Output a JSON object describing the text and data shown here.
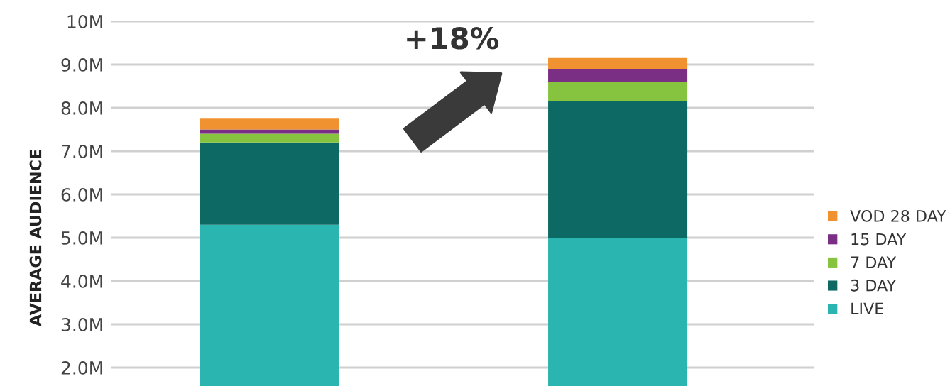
{
  "chart_data": {
    "type": "bar",
    "stacked": true,
    "ylabel": "AVERAGE AUDIENCE",
    "categories": [
      null,
      null
    ],
    "series": [
      {
        "name": "LIVE",
        "color": "#2bb5b0",
        "values": [
          5.3,
          5.0
        ]
      },
      {
        "name": "3 DAY",
        "color": "#0c6964",
        "values": [
          1.9,
          3.15
        ]
      },
      {
        "name": "7 DAY",
        "color": "#86c440",
        "values": [
          0.2,
          0.45
        ]
      },
      {
        "name": "15 DAY",
        "color": "#7a2e84",
        "values": [
          0.1,
          0.3
        ]
      },
      {
        "name": "VOD 28 DAY",
        "color": "#f0922f",
        "values": [
          0.25,
          0.25
        ]
      }
    ],
    "ylim": [
      0,
      10
    ],
    "yticks": [
      {
        "value": 2,
        "label": "2.0M"
      },
      {
        "value": 3,
        "label": "3.0M"
      },
      {
        "value": 4,
        "label": "4.0M"
      },
      {
        "value": 5,
        "label": "5.0M"
      },
      {
        "value": 6,
        "label": "6.0M"
      },
      {
        "value": 7,
        "label": "7.0M"
      },
      {
        "value": 8,
        "label": "8.0M"
      },
      {
        "value": 9,
        "label": "9.0M"
      },
      {
        "value": 10,
        "label": "10M"
      }
    ],
    "grid": "y",
    "legend": "right",
    "annotations": [
      "+18%"
    ]
  }
}
